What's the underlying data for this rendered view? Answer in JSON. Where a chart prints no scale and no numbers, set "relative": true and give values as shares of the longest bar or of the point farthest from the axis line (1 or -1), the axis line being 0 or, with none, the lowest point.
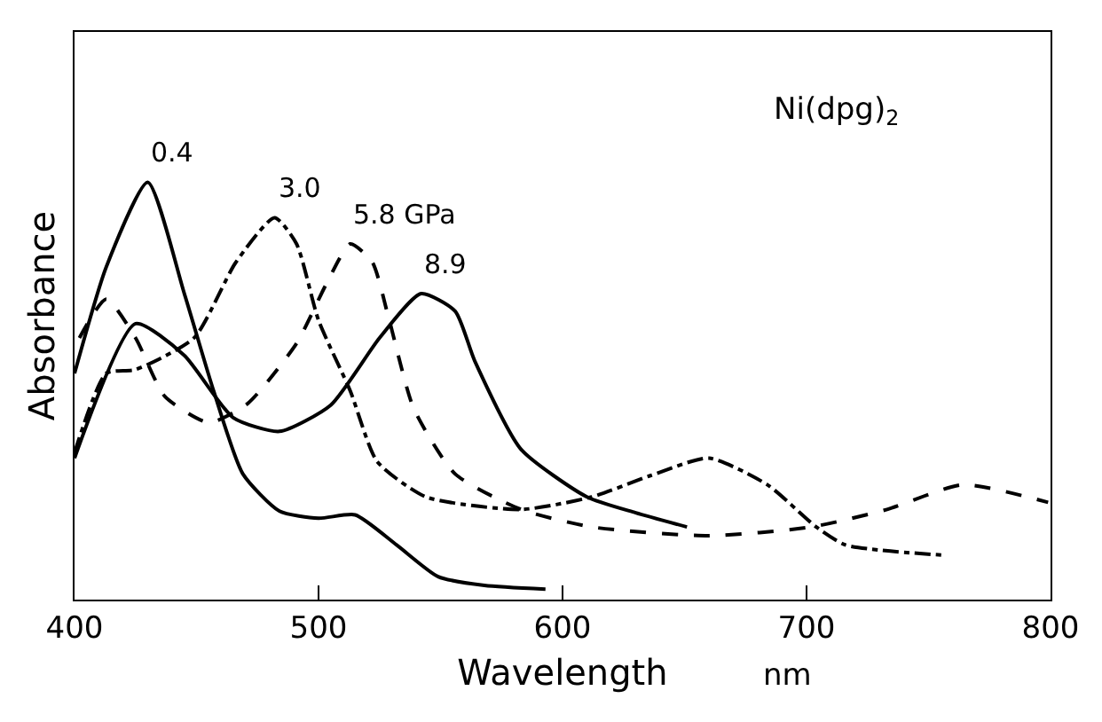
{
  "chart_data": {
    "type": "line",
    "xlabel": "Wavelength",
    "ylabel": "Absorbance",
    "relative": true,
    "xlim": [
      400,
      800
    ],
    "xticks": [
      400,
      500,
      600,
      700,
      800
    ],
    "legend": false,
    "marker": "none",
    "annotations": [
      "Ni(dpg)$_{2}$",
      "nm"
    ],
    "series": [
      {
        "name": "0.4",
        "color": "#000000",
        "line_style": "solid",
        "x": [
          400,
          413,
          430,
          445,
          457,
          469,
          484,
          500,
          515,
          532,
          549,
          568,
          593
        ],
        "values": [
          0.542,
          0.797,
          1.0,
          0.733,
          0.5,
          0.301,
          0.212,
          0.195,
          0.203,
          0.131,
          0.055,
          0.034,
          0.025
        ]
      },
      {
        "name": "3.0",
        "color": "#000000",
        "line_style": "dashdot",
        "x": [
          400,
          413,
          425,
          449,
          466,
          482,
          491,
          500,
          513,
          524,
          544,
          583,
          612,
          636,
          660,
          684,
          704,
          716,
          757
        ],
        "values": [
          0.352,
          0.542,
          0.551,
          0.627,
          0.807,
          0.915,
          0.852,
          0.669,
          0.5,
          0.331,
          0.246,
          0.216,
          0.246,
          0.297,
          0.339,
          0.275,
          0.174,
          0.131,
          0.106
        ]
      },
      {
        "name": "5.8 GPa",
        "color": "#000000",
        "line_style": "dashed",
        "x": [
          402,
          413,
          425,
          437,
          455,
          471,
          491,
          503,
          513,
          522,
          529,
          539,
          556,
          583,
          612,
          660,
          702,
          733,
          764,
          799
        ],
        "values": [
          0.627,
          0.72,
          0.627,
          0.487,
          0.424,
          0.47,
          0.614,
          0.754,
          0.852,
          0.809,
          0.669,
          0.458,
          0.301,
          0.216,
          0.174,
          0.153,
          0.174,
          0.216,
          0.275,
          0.233
        ]
      },
      {
        "name": "8.9",
        "color": "#000000",
        "line_style": "solid",
        "x": [
          400,
          425,
          445,
          465,
          484,
          505,
          525,
          542,
          556,
          564,
          583,
          610,
          630,
          651
        ],
        "values": [
          0.339,
          0.661,
          0.585,
          0.436,
          0.403,
          0.466,
          0.627,
          0.733,
          0.691,
          0.572,
          0.36,
          0.246,
          0.208,
          0.174
        ]
      }
    ]
  }
}
